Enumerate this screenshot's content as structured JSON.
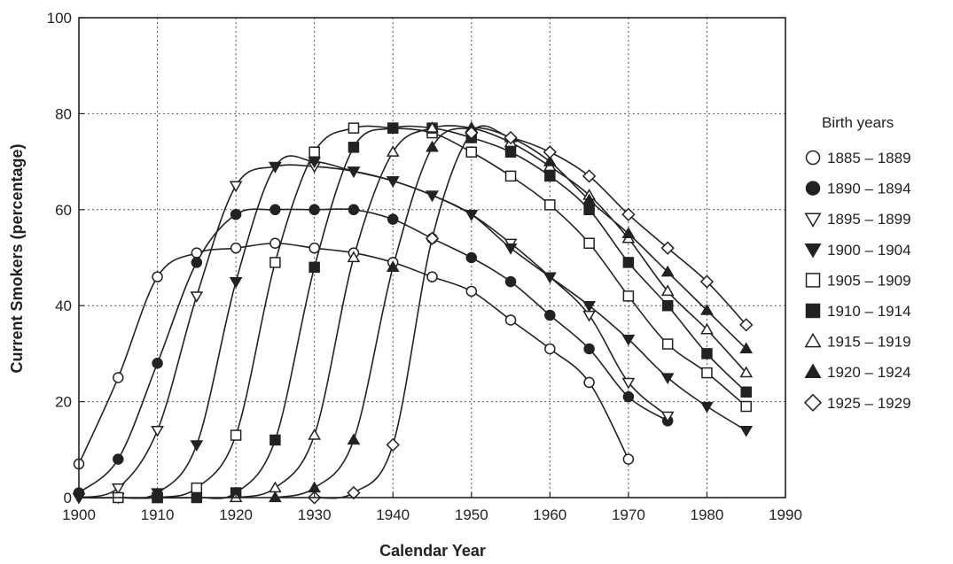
{
  "chart_data": {
    "type": "line",
    "xlabel": "Calendar Year",
    "ylabel": "Current Smokers (percentage)",
    "xlim": [
      1900,
      1990
    ],
    "ylim": [
      0,
      100
    ],
    "xticks": [
      "1900",
      "1910",
      "1920",
      "1930",
      "1940",
      "1950",
      "1960",
      "1970",
      "1980",
      "1990"
    ],
    "yticks": [
      "0",
      "20",
      "40",
      "60",
      "80",
      "100"
    ],
    "grid": true,
    "legend": {
      "title": "Birth years",
      "position": "right"
    },
    "series": [
      {
        "name": "1885 – 1889",
        "marker": "circle-open",
        "points": [
          [
            1900,
            7
          ],
          [
            1905,
            25
          ],
          [
            1910,
            46
          ],
          [
            1915,
            51
          ],
          [
            1920,
            52
          ],
          [
            1925,
            53
          ],
          [
            1930,
            52
          ],
          [
            1935,
            51
          ],
          [
            1940,
            49
          ],
          [
            1945,
            46
          ],
          [
            1950,
            43
          ],
          [
            1955,
            37
          ],
          [
            1960,
            31
          ],
          [
            1965,
            24
          ],
          [
            1970,
            8
          ]
        ]
      },
      {
        "name": "1890 – 1894",
        "marker": "circle-filled",
        "points": [
          [
            1900,
            1
          ],
          [
            1905,
            8
          ],
          [
            1910,
            28
          ],
          [
            1915,
            49
          ],
          [
            1920,
            59
          ],
          [
            1925,
            60
          ],
          [
            1930,
            60
          ],
          [
            1935,
            60
          ],
          [
            1940,
            58
          ],
          [
            1945,
            54
          ],
          [
            1950,
            50
          ],
          [
            1955,
            45
          ],
          [
            1960,
            38
          ],
          [
            1965,
            31
          ],
          [
            1970,
            21
          ],
          [
            1975,
            16
          ]
        ]
      },
      {
        "name": "1895 – 1899",
        "marker": "triangle-down-open",
        "points": [
          [
            1900,
            0
          ],
          [
            1905,
            2
          ],
          [
            1910,
            14
          ],
          [
            1915,
            42
          ],
          [
            1920,
            65
          ],
          [
            1925,
            69
          ],
          [
            1930,
            69
          ],
          [
            1935,
            68
          ],
          [
            1940,
            66
          ],
          [
            1945,
            63
          ],
          [
            1950,
            59
          ],
          [
            1955,
            53
          ],
          [
            1960,
            46
          ],
          [
            1965,
            38
          ],
          [
            1970,
            24
          ],
          [
            1975,
            17
          ]
        ]
      },
      {
        "name": "1900 – 1904",
        "marker": "triangle-down-filled",
        "points": [
          [
            1900,
            0
          ],
          [
            1905,
            0
          ],
          [
            1910,
            1
          ],
          [
            1915,
            11
          ],
          [
            1920,
            45
          ],
          [
            1925,
            69
          ],
          [
            1930,
            70
          ],
          [
            1935,
            68
          ],
          [
            1940,
            66
          ],
          [
            1945,
            63
          ],
          [
            1950,
            59
          ],
          [
            1955,
            52
          ],
          [
            1960,
            46
          ],
          [
            1965,
            40
          ],
          [
            1970,
            33
          ],
          [
            1975,
            25
          ],
          [
            1980,
            19
          ],
          [
            1985,
            14
          ]
        ]
      },
      {
        "name": "1905 – 1909",
        "marker": "square-open",
        "points": [
          [
            1905,
            0
          ],
          [
            1910,
            0
          ],
          [
            1915,
            2
          ],
          [
            1920,
            13
          ],
          [
            1925,
            49
          ],
          [
            1930,
            72
          ],
          [
            1935,
            77
          ],
          [
            1940,
            77
          ],
          [
            1945,
            76
          ],
          [
            1950,
            72
          ],
          [
            1955,
            67
          ],
          [
            1960,
            61
          ],
          [
            1965,
            53
          ],
          [
            1970,
            42
          ],
          [
            1975,
            32
          ],
          [
            1980,
            26
          ],
          [
            1985,
            19
          ]
        ]
      },
      {
        "name": "1910 – 1914",
        "marker": "square-filled",
        "points": [
          [
            1910,
            0
          ],
          [
            1915,
            0
          ],
          [
            1920,
            1
          ],
          [
            1925,
            12
          ],
          [
            1930,
            48
          ],
          [
            1935,
            73
          ],
          [
            1940,
            77
          ],
          [
            1945,
            77
          ],
          [
            1950,
            75
          ],
          [
            1955,
            72
          ],
          [
            1960,
            67
          ],
          [
            1965,
            60
          ],
          [
            1970,
            49
          ],
          [
            1975,
            40
          ],
          [
            1980,
            30
          ],
          [
            1985,
            22
          ]
        ]
      },
      {
        "name": "1915 – 1919",
        "marker": "triangle-up-open",
        "points": [
          [
            1920,
            0
          ],
          [
            1925,
            2
          ],
          [
            1930,
            13
          ],
          [
            1935,
            50
          ],
          [
            1940,
            72
          ],
          [
            1945,
            77
          ],
          [
            1950,
            77
          ],
          [
            1955,
            74
          ],
          [
            1960,
            69
          ],
          [
            1965,
            63
          ],
          [
            1970,
            54
          ],
          [
            1975,
            43
          ],
          [
            1980,
            35
          ],
          [
            1985,
            26
          ]
        ]
      },
      {
        "name": "1920 – 1924",
        "marker": "triangle-up-filled",
        "points": [
          [
            1925,
            0
          ],
          [
            1930,
            2
          ],
          [
            1935,
            12
          ],
          [
            1940,
            48
          ],
          [
            1945,
            73
          ],
          [
            1950,
            77
          ],
          [
            1955,
            75
          ],
          [
            1960,
            70
          ],
          [
            1965,
            62
          ],
          [
            1970,
            55
          ],
          [
            1975,
            47
          ],
          [
            1980,
            39
          ],
          [
            1985,
            31
          ]
        ]
      },
      {
        "name": "1925 – 1929",
        "marker": "diamond-open",
        "points": [
          [
            1930,
            0
          ],
          [
            1935,
            1
          ],
          [
            1940,
            11
          ],
          [
            1945,
            54
          ],
          [
            1950,
            76
          ],
          [
            1955,
            75
          ],
          [
            1960,
            72
          ],
          [
            1965,
            67
          ],
          [
            1970,
            59
          ],
          [
            1975,
            52
          ],
          [
            1980,
            45
          ],
          [
            1985,
            36
          ]
        ]
      }
    ]
  }
}
